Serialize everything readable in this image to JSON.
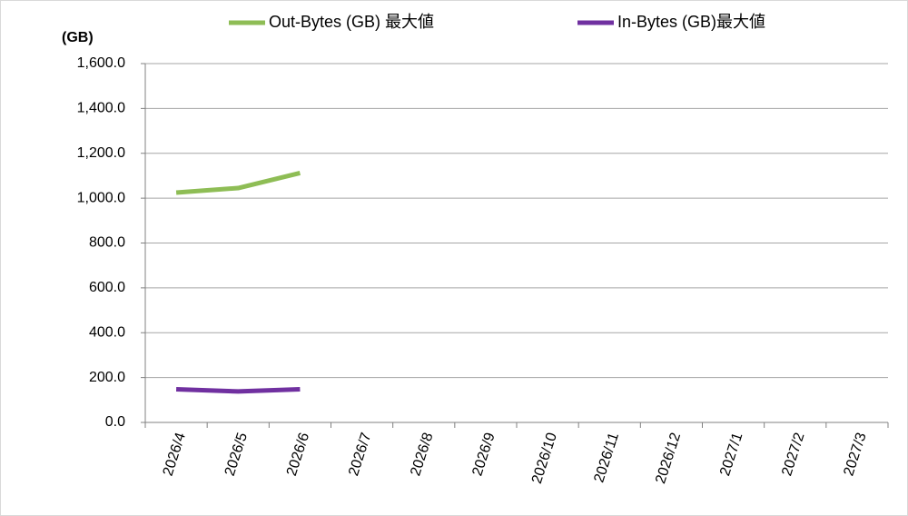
{
  "chart_data": {
    "type": "line",
    "y_label": "(GB)",
    "categories": [
      "2026/4",
      "2026/5",
      "2026/6",
      "2026/7",
      "2026/8",
      "2026/9",
      "2026/10",
      "2026/11",
      "2026/12",
      "2027/1",
      "2027/2",
      "2027/3"
    ],
    "series": [
      {
        "name": "Out-Bytes (GB) 最大値",
        "color": "#8ebd55",
        "values": [
          1025,
          1045,
          1112,
          null,
          null,
          null,
          null,
          null,
          null,
          null,
          null,
          null
        ]
      },
      {
        "name": "In-Bytes (GB)最大値",
        "color": "#7030a0",
        "values": [
          148,
          138,
          148,
          null,
          null,
          null,
          null,
          null,
          null,
          null,
          null,
          null
        ]
      }
    ],
    "ylim": [
      0,
      1600
    ],
    "yticks": [
      {
        "value": 0,
        "label": "0.0"
      },
      {
        "value": 200,
        "label": "200.0"
      },
      {
        "value": 400,
        "label": "400.0"
      },
      {
        "value": 600,
        "label": "600.0"
      },
      {
        "value": 800,
        "label": "800.0"
      },
      {
        "value": 1000,
        "label": "1,000.0"
      },
      {
        "value": 1200,
        "label": "1,200.0"
      },
      {
        "value": 1400,
        "label": "1,400.0"
      },
      {
        "value": 1600,
        "label": "1,600.0"
      }
    ],
    "grid": true
  }
}
